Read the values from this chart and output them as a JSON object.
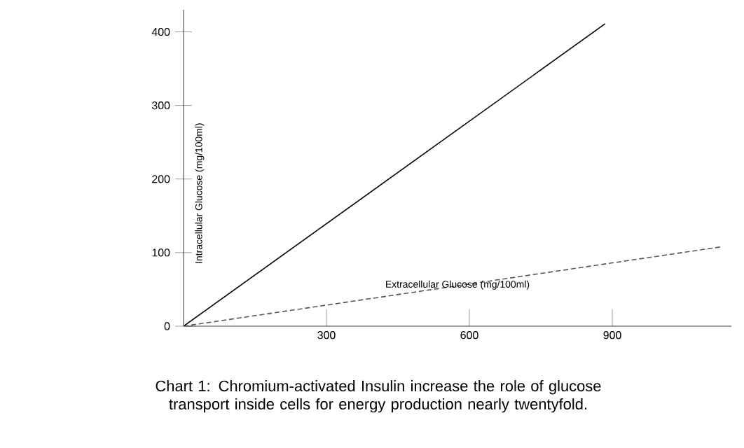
{
  "chart_data": {
    "type": "line",
    "xlabel": "Extracellular Glucose (mg/100ml)",
    "ylabel": "Intracellular Glucose (mg/100ml)",
    "annotations": [
      "Chart 1:  Chromium-activated Insulin increase the role of glucose transport inside cells for energy production nearly twentyfold."
    ],
    "series": [
      {
        "color": "#000000",
        "line_style": "solid",
        "x": [
          0,
          885
        ],
        "values": [
          0,
          411
        ]
      },
      {
        "color": "#555555",
        "line_style": "dashed",
        "x": [
          0,
          1130
        ],
        "values": [
          0,
          108
        ]
      }
    ],
    "xlim": [
      0,
      1150
    ],
    "ylim": [
      0,
      430
    ],
    "xticks": [
      300,
      600,
      900
    ],
    "yticks": [
      0,
      100,
      200,
      300,
      400
    ],
    "grid": false,
    "marker": "none"
  }
}
